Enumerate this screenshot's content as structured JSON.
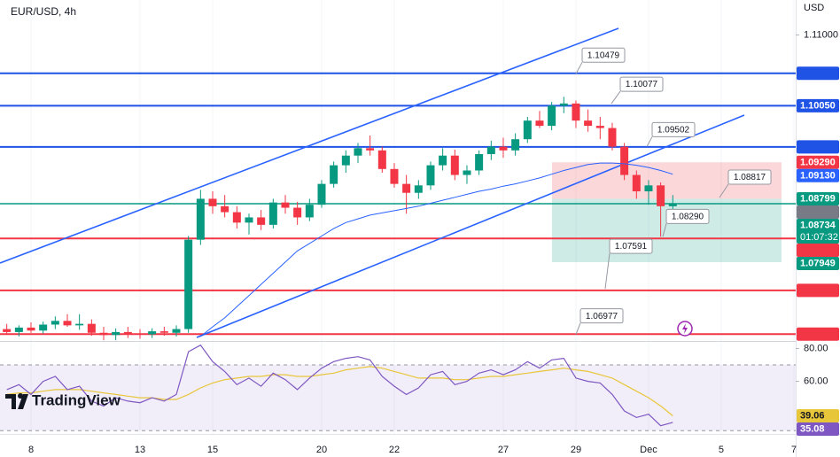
{
  "header": {
    "symbol": "EUR/USD, 4h",
    "currency": "USD",
    "brand": "TradingView"
  },
  "chart_data": {
    "type": "candlestick",
    "x": [
      -0.667,
      -0.333,
      0,
      0.333,
      0.667,
      1,
      1.333,
      1.667,
      2,
      2.333,
      2.667,
      3,
      3.333,
      3.667,
      4,
      4.333,
      4.667,
      5,
      5.333,
      5.667,
      6,
      6.333,
      6.667,
      7,
      7.333,
      7.667,
      8,
      8.333,
      8.667,
      9,
      9.333,
      9.667,
      10,
      10.333,
      10.667,
      11,
      11.333,
      11.667,
      12,
      12.333,
      12.667,
      13,
      13.333,
      13.667,
      14,
      14.333,
      14.667,
      15,
      15.333,
      15.667,
      16,
      16.333,
      16.667,
      17,
      17.333,
      17.667
    ],
    "open": [
      1.0705,
      1.0701,
      1.0707,
      1.0703,
      1.0711,
      1.0716,
      1.071,
      1.0712,
      1.07,
      1.0697,
      1.0701,
      1.0699,
      1.0698,
      1.0702,
      1.07,
      1.0705,
      1.0825,
      1.088,
      1.087,
      1.0862,
      1.0848,
      1.0855,
      1.0845,
      1.0875,
      1.0868,
      1.0855,
      1.0872,
      1.09,
      1.0925,
      1.0938,
      1.0948,
      1.0945,
      1.092,
      1.09,
      1.0888,
      1.0898,
      1.0925,
      1.0938,
      1.0912,
      1.0918,
      1.094,
      1.095,
      1.0945,
      1.096,
      1.0985,
      1.0978,
      1.1005,
      1.1008,
      1.0985,
      1.0978,
      1.0975,
      1.095,
      1.0912,
      1.089,
      1.0898,
      1.087
    ],
    "high": [
      1.0712,
      1.071,
      1.0714,
      1.0715,
      1.0722,
      1.0725,
      1.0725,
      1.0718,
      1.0708,
      1.0706,
      1.0708,
      1.0705,
      1.0706,
      1.0708,
      1.071,
      1.083,
      1.0892,
      1.089,
      1.0885,
      1.087,
      1.086,
      1.0865,
      1.088,
      1.0885,
      1.0876,
      1.088,
      1.0905,
      1.093,
      1.0945,
      1.0955,
      1.0965,
      1.095,
      1.0928,
      1.0912,
      1.0905,
      1.093,
      1.0948,
      1.0946,
      1.0925,
      1.0945,
      1.0958,
      1.0962,
      1.0968,
      1.099,
      1.0998,
      1.101,
      1.1017,
      1.1012,
      1.1,
      1.099,
      1.0982,
      1.0955,
      1.0918,
      1.0905,
      1.0902,
      1.0885
    ],
    "low": [
      1.0698,
      1.0695,
      1.07,
      1.0699,
      1.0705,
      1.0708,
      1.0704,
      1.0696,
      1.069,
      1.069,
      1.0693,
      1.0692,
      1.0693,
      1.0696,
      1.0695,
      1.07,
      1.0818,
      1.086,
      1.0855,
      1.084,
      1.0832,
      1.0838,
      1.084,
      1.086,
      1.0845,
      1.085,
      1.0868,
      1.0895,
      1.0915,
      1.0928,
      1.0938,
      1.0915,
      1.0895,
      1.086,
      1.088,
      1.0892,
      1.0918,
      1.0905,
      1.09,
      1.0912,
      1.0932,
      1.0935,
      1.0938,
      1.0955,
      1.0975,
      1.0972,
      1.0995,
      1.0975,
      1.097,
      1.096,
      1.0945,
      1.0905,
      1.088,
      1.0872,
      1.0829,
      1.0865
    ],
    "close": [
      1.0701,
      1.0707,
      1.0703,
      1.0711,
      1.0716,
      1.071,
      1.0712,
      1.07,
      1.0697,
      1.0701,
      1.0699,
      1.0698,
      1.0702,
      1.07,
      1.0705,
      1.0825,
      1.088,
      1.087,
      1.0862,
      1.0848,
      1.0855,
      1.0845,
      1.0875,
      1.0868,
      1.0855,
      1.0872,
      1.09,
      1.0925,
      1.0938,
      1.0948,
      1.0945,
      1.092,
      1.09,
      1.0888,
      1.0898,
      1.0925,
      1.0938,
      1.0912,
      1.0918,
      1.094,
      1.095,
      1.0945,
      1.096,
      1.0985,
      1.0978,
      1.1005,
      1.1008,
      1.0985,
      1.0978,
      1.0975,
      1.095,
      1.0912,
      1.089,
      1.0898,
      1.087,
      1.08734
    ],
    "up_color": "#089981",
    "down_color": "#f23645",
    "xlim": [
      -0.854,
      21.05
    ],
    "xticks": [
      {
        "value": 0,
        "label": "8"
      },
      {
        "value": 3,
        "label": "13"
      },
      {
        "value": 5,
        "label": "15"
      },
      {
        "value": 8,
        "label": "20"
      },
      {
        "value": 10,
        "label": "22"
      },
      {
        "value": 13,
        "label": "27"
      },
      {
        "value": 15,
        "label": "29"
      },
      {
        "value": 17,
        "label": "Dec"
      },
      {
        "value": 19,
        "label": "5"
      },
      {
        "value": 21,
        "label": "7"
      }
    ],
    "ylim": [
      1.0689,
      1.1147
    ],
    "yticks": [
      {
        "value": 1.11,
        "label": "1.11000"
      }
    ],
    "ma": {
      "color": "#2962ff",
      "values": [
        null,
        null,
        null,
        null,
        null,
        null,
        null,
        null,
        null,
        null,
        null,
        null,
        null,
        null,
        null,
        null,
        1.0695,
        1.0708,
        1.072,
        1.0735,
        1.075,
        1.0765,
        1.078,
        1.0795,
        1.081,
        1.082,
        1.083,
        1.084,
        1.0848,
        1.0853,
        1.0858,
        1.0861,
        1.0864,
        1.0867,
        1.087,
        1.0874,
        1.0878,
        1.0882,
        1.0886,
        1.089,
        1.0893,
        1.0897,
        1.09,
        1.0904,
        1.0908,
        1.0913,
        1.0918,
        1.0922,
        1.0926,
        1.0928,
        1.0928,
        1.0927,
        1.0925,
        1.0922,
        1.0918,
        1.0913
      ],
      "value_labels": [
        null,
        null,
        null,
        null,
        null,
        null,
        null,
        null,
        null,
        null,
        null,
        null,
        null,
        null,
        null,
        null,
        null,
        null,
        null,
        null,
        null,
        null,
        null,
        null,
        null,
        null,
        null,
        null,
        null,
        null,
        null,
        null,
        null,
        null,
        null,
        null,
        null,
        null,
        null,
        null,
        null,
        null,
        null,
        null,
        null,
        null,
        null,
        null,
        null,
        null,
        null,
        null,
        null,
        null,
        null,
        "1.09130"
      ]
    },
    "levels": [
      {
        "value": 1.10485,
        "color": "#1e53e5",
        "line": true
      },
      {
        "value": 1.1005,
        "label": "1.10050",
        "color": "#1e53e5",
        "line": true
      },
      {
        "value": 1.09496,
        "color": "#1e53e5",
        "line": true
      },
      {
        "value": 1.08789,
        "color": "#787b86",
        "line": false
      },
      {
        "value": 1.08267,
        "color": "#f23645",
        "line": true
      },
      {
        "value": 1.07569,
        "color": "#f23645",
        "line": true
      },
      {
        "value": 1.06982,
        "color": "#f23645",
        "line": true
      }
    ],
    "position": {
      "stop": {
        "value": 1.0929,
        "label": "1.09290"
      },
      "entry": 1.08799,
      "target": 1.07949
    },
    "countdown": "01:07:32",
    "callouts": [
      1.10479,
      1.10077,
      1.09502,
      1.08817,
      {
        "value": 1.0829,
        "label": "1.08290"
      },
      1.07591,
      1.06977
    ],
    "rsi": {
      "color": "#7e57c2",
      "ma_color": "#e8c63a",
      "ylim": [
        28,
        84
      ],
      "yticks": [
        {
          "value": 80,
          "label": "80.00"
        },
        {
          "value": 60,
          "label": "60.00"
        }
      ],
      "band": [
        30,
        70
      ],
      "values": [
        55,
        58,
        52,
        60,
        63,
        55,
        57,
        48,
        45,
        50,
        48,
        47,
        50,
        48,
        52,
        78,
        82,
        72,
        66,
        58,
        62,
        57,
        65,
        61,
        55,
        62,
        68,
        72,
        74,
        75,
        73,
        63,
        57,
        52,
        56,
        64,
        66,
        58,
        60,
        65,
        67,
        64,
        67,
        72,
        68,
        73,
        74,
        62,
        60,
        59,
        52,
        42,
        38,
        40,
        33,
        35.08
      ],
      "ma_values": [
        52,
        53,
        53,
        54,
        55,
        55,
        55,
        54,
        53,
        52,
        51,
        50,
        50,
        49,
        49,
        52,
        56,
        59,
        61,
        62,
        63,
        63,
        64,
        64,
        63,
        63,
        64,
        65,
        67,
        68,
        69,
        68,
        66,
        64,
        62,
        62,
        62,
        61,
        61,
        62,
        63,
        63,
        64,
        65,
        66,
        67,
        68,
        67,
        66,
        64,
        62,
        58,
        54,
        50,
        45,
        39.06
      ]
    }
  }
}
